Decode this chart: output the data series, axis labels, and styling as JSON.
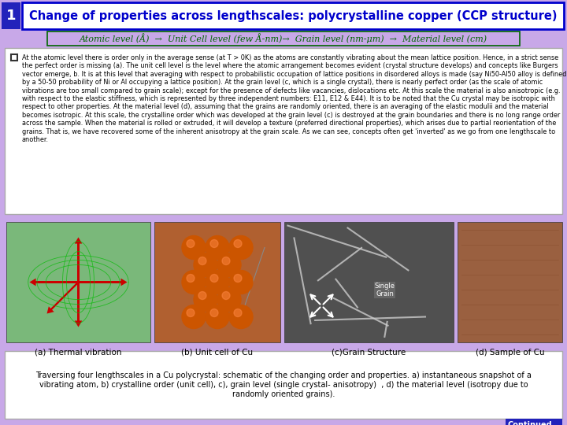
{
  "bg_color": "#c8a8e8",
  "title_number": "1",
  "title_number_bg": "#2222bb",
  "title_number_fg": "#ffffff",
  "title_text": "Change of properties across lengthscales: polycrystalline copper (CCP structure)",
  "title_bg": "#ffffff",
  "title_fg": "#0000cc",
  "title_border": "#0000cc",
  "subtitle_text": "Atomic level (Å)  →  Unit Cell level (few Å-nm)→  Grain level (nm-μm)  →  Material level (cm)",
  "subtitle_bg": "#c8a8e8",
  "subtitle_fg": "#006600",
  "subtitle_border": "#006600",
  "body_bg": "#ffffff",
  "body_fg": "#000000",
  "body_text": "At the atomic level there is order only in the average sense (at T > 0K) as the atoms are constantly vibrating about the mean lattice position. Hence, in a strict sense the perfect order is missing (a). The unit cell level is the level where the atomic arrangement becomes evident (crystal structure develops) and concepts like Burgers vector emerge, b. It is at this level that averaging with respect to probabilistic occupation of lattice positions in disordered alloys is made (say Ni50-Al50 alloy is defined by a 50-50 probability of Ni or Al occupying a lattice position). At the grain level (c, which is a single crystal), there is nearly perfect order (as the scale of atomic vibrations are too small compared to grain scale); except for the presence of defects like vacancies, dislocations etc. At this scale the material is also anisotropic (e.g. with respect to the elastic stiffness, which is represented by three independent numbers: E11, E12 & E44). It is to be noted that the Cu crystal may be isotropic with respect to other properties. At the material level (d), assuming that the grains are randomly oriented, there is an averaging of the elastic modulii and the material becomes isotropic. At this scale, the crystalline order which was developed at the grain level (c) is destroyed at the grain boundaries and there is no long range order across the sample. When the material is rolled or extruded, it will develop a texture (preferred directional properties), which arises due to partial reorientation of the grains. That is, we have recovered some of the inherent anisotropy at the grain scale. As we can see, concepts often get 'inverted' as we go from one lengthscale to another.",
  "caption_text": "Traversing four lengthscales in a Cu polycrystal: schematic of the changing order and properties. a) instantaneous snapshot of a\nvibrating atom, b) crystalline order (unit cell), c), grain level (single crystal- anisotropy)  , d) the material level (isotropy due to\nrandomly oriented grains).",
  "caption_bg": "#ffffff",
  "caption_fg": "#000000",
  "continued_text": "Continued...",
  "continued_bg": "#2222bb",
  "continued_fg": "#ffffff",
  "img_label_a": "(a) Thermal vibration",
  "img_label_b": "(b) Unit cell of Cu",
  "img_label_c": "(c)Grain Structure",
  "img_label_d": "(d) Sample of Cu"
}
